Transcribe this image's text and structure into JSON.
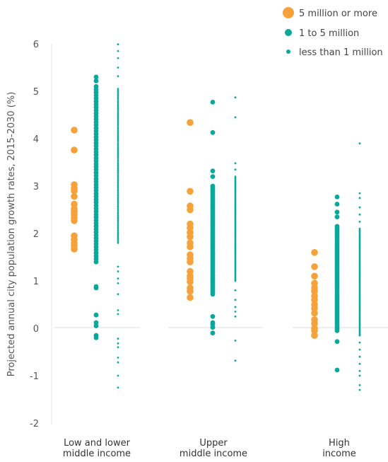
{
  "chart_data": {
    "type": "scatter",
    "ylabel": "Projected annual city population growth rates, 2015-2030 (%)",
    "ylim": [
      -2,
      6
    ],
    "yticks": [
      "6",
      "5",
      "4",
      "3",
      "2",
      "1",
      "0",
      "-1",
      "-2"
    ],
    "categories": [
      "Low and lower middle income",
      "Upper middle income",
      "High income"
    ],
    "category_lines": [
      [
        "Low and lower",
        "middle income"
      ],
      [
        "Upper",
        "middle income"
      ],
      [
        "High",
        "income"
      ]
    ],
    "legend_placement": "top-right",
    "series": [
      {
        "name": "5 million or more",
        "color": "#f7a13b",
        "values": [
          [
            4.18,
            3.76,
            3.03,
            2.95,
            2.9,
            2.78,
            2.62,
            2.52,
            2.46,
            2.4,
            2.33,
            2.27,
            1.95,
            1.87,
            1.8,
            1.74,
            1.67
          ],
          [
            4.34,
            2.89,
            2.58,
            2.5,
            2.2,
            2.12,
            2.02,
            1.93,
            1.8,
            1.72,
            1.55,
            1.47,
            1.4,
            1.2,
            1.1,
            1.05,
            0.98,
            0.85,
            0.78,
            0.65
          ],
          [
            1.6,
            1.3,
            1.1,
            0.95,
            0.85,
            0.78,
            0.68,
            0.6,
            0.5,
            0.42,
            0.32,
            0.18,
            0.1,
            0.0,
            -0.05,
            -0.15
          ]
        ]
      },
      {
        "name": "1 to 5 million",
        "color": "#0aa89a",
        "values": [
          {
            "points": [
              5.3,
              5.22,
              0.88,
              0.85,
              0.28,
              0.12,
              0.05,
              -0.15,
              -0.2
            ],
            "range": [
              1.4,
              5.1
            ],
            "count": 60
          },
          {
            "points": [
              4.77,
              4.13,
              3.32,
              3.2,
              0.25,
              0.12,
              0.08,
              0.02,
              -0.1
            ],
            "range": [
              0.72,
              3.0
            ],
            "count": 55
          },
          {
            "points": [
              2.77,
              2.62,
              2.45,
              2.35,
              -0.28,
              -0.88
            ],
            "range": [
              -0.05,
              2.15
            ],
            "count": 55
          }
        ]
      },
      {
        "name": "less than 1 million",
        "color": "#0aa89a",
        "values": [
          {
            "points": [
              5.99,
              5.85,
              5.7,
              5.5,
              5.32,
              1.3,
              1.2,
              1.05,
              0.95,
              0.72,
              0.38,
              0.3,
              -0.22,
              -0.32,
              -0.4,
              -0.62,
              -0.72,
              -1.0,
              -1.25
            ],
            "range": [
              1.8,
              5.05
            ],
            "count": 90
          },
          {
            "points": [
              4.87,
              4.45,
              3.48,
              3.35,
              0.8,
              0.6,
              0.45,
              0.35,
              0.25,
              -0.26,
              -0.68
            ],
            "range": [
              1.0,
              3.2
            ],
            "count": 80
          },
          {
            "points": [
              3.9,
              2.85,
              2.75,
              2.55,
              2.4,
              2.25,
              -0.3,
              -0.45,
              -0.6,
              -0.75,
              -0.9,
              -1.0,
              -1.2,
              -1.3
            ],
            "range": [
              -0.15,
              2.1
            ],
            "count": 80
          }
        ]
      }
    ],
    "legend": [
      "5 million or more",
      "1 to 5 million",
      "less than 1 million"
    ]
  }
}
